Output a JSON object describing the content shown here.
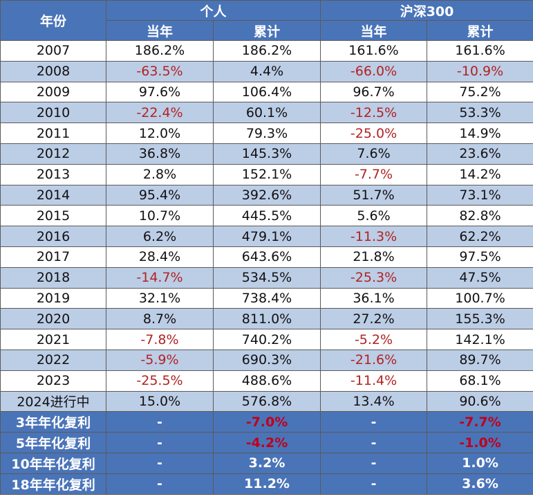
{
  "chart_data": {
    "type": "table",
    "header": {
      "year": "年份",
      "group_personal": "个人",
      "group_index": "沪深300",
      "annual": "当年",
      "cumulative": "累计"
    },
    "colors": {
      "header_bg": "#4a74b8",
      "stripe": "#bccde6",
      "negative": "#b22222"
    },
    "rows": [
      {
        "year": "2007",
        "p_annual": "186.2%",
        "p_cum": "186.2%",
        "i_annual": "161.6%",
        "i_cum": "161.6%"
      },
      {
        "year": "2008",
        "p_annual": "-63.5%",
        "p_cum": "4.4%",
        "i_annual": "-66.0%",
        "i_cum": "-10.9%"
      },
      {
        "year": "2009",
        "p_annual": "97.6%",
        "p_cum": "106.4%",
        "i_annual": "96.7%",
        "i_cum": "75.2%"
      },
      {
        "year": "2010",
        "p_annual": "-22.4%",
        "p_cum": "60.1%",
        "i_annual": "-12.5%",
        "i_cum": "53.3%"
      },
      {
        "year": "2011",
        "p_annual": "12.0%",
        "p_cum": "79.3%",
        "i_annual": "-25.0%",
        "i_cum": "14.9%"
      },
      {
        "year": "2012",
        "p_annual": "36.8%",
        "p_cum": "145.3%",
        "i_annual": "7.6%",
        "i_cum": "23.6%"
      },
      {
        "year": "2013",
        "p_annual": "2.8%",
        "p_cum": "152.1%",
        "i_annual": "-7.7%",
        "i_cum": "14.2%"
      },
      {
        "year": "2014",
        "p_annual": "95.4%",
        "p_cum": "392.6%",
        "i_annual": "51.7%",
        "i_cum": "73.1%"
      },
      {
        "year": "2015",
        "p_annual": "10.7%",
        "p_cum": "445.5%",
        "i_annual": "5.6%",
        "i_cum": "82.8%"
      },
      {
        "year": "2016",
        "p_annual": "6.2%",
        "p_cum": "479.1%",
        "i_annual": "-11.3%",
        "i_cum": "62.2%"
      },
      {
        "year": "2017",
        "p_annual": "28.4%",
        "p_cum": "643.6%",
        "i_annual": "21.8%",
        "i_cum": "97.5%"
      },
      {
        "year": "2018",
        "p_annual": "-14.7%",
        "p_cum": "534.5%",
        "i_annual": "-25.3%",
        "i_cum": "47.5%"
      },
      {
        "year": "2019",
        "p_annual": "32.1%",
        "p_cum": "738.4%",
        "i_annual": "36.1%",
        "i_cum": "100.7%"
      },
      {
        "year": "2020",
        "p_annual": "8.7%",
        "p_cum": "811.0%",
        "i_annual": "27.2%",
        "i_cum": "155.3%"
      },
      {
        "year": "2021",
        "p_annual": "-7.8%",
        "p_cum": "740.2%",
        "i_annual": "-5.2%",
        "i_cum": "142.1%"
      },
      {
        "year": "2022",
        "p_annual": "-5.9%",
        "p_cum": "690.3%",
        "i_annual": "-21.6%",
        "i_cum": "89.7%"
      },
      {
        "year": "2023",
        "p_annual": "-25.5%",
        "p_cum": "488.6%",
        "i_annual": "-11.4%",
        "i_cum": "68.1%"
      },
      {
        "year": "2024进行中",
        "p_annual": "15.0%",
        "p_cum": "576.8%",
        "i_annual": "13.4%",
        "i_cum": "90.6%"
      }
    ],
    "summary": [
      {
        "label": "3年年化复利",
        "p_annual": "-",
        "p_cum": "-7.0%",
        "i_annual": "-",
        "i_cum": "-7.7%"
      },
      {
        "label": "5年年化复利",
        "p_annual": "-",
        "p_cum": "-4.2%",
        "i_annual": "-",
        "i_cum": "-1.0%"
      },
      {
        "label": "10年年化复利",
        "p_annual": "-",
        "p_cum": "3.2%",
        "i_annual": "-",
        "i_cum": "1.0%"
      },
      {
        "label": "18年年化复利",
        "p_annual": "-",
        "p_cum": "11.2%",
        "i_annual": "-",
        "i_cum": "3.6%"
      }
    ]
  }
}
